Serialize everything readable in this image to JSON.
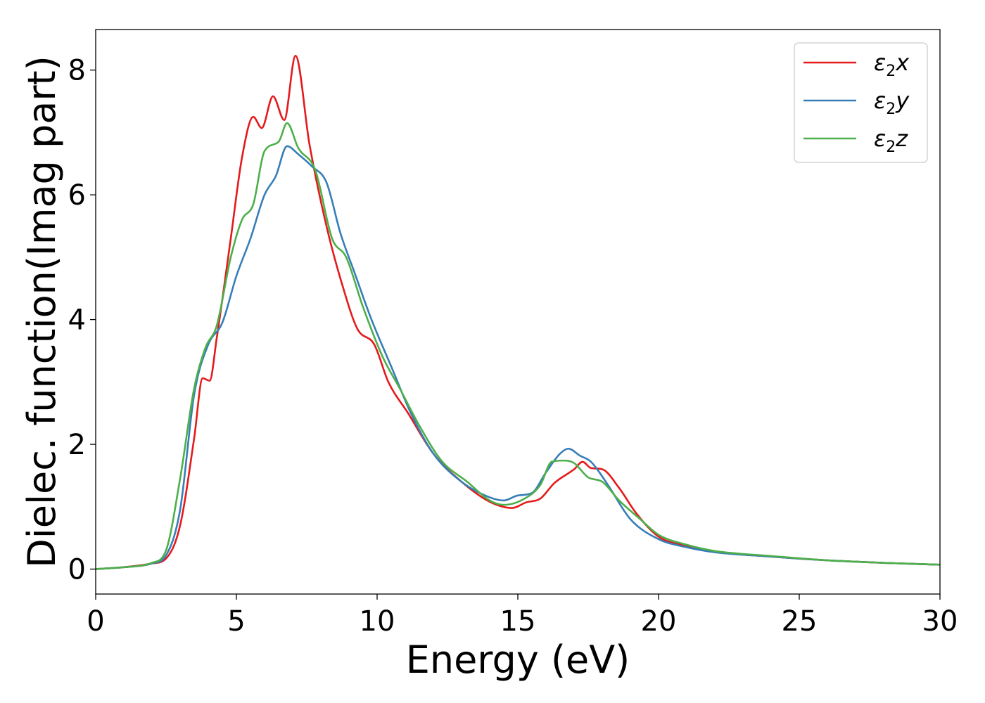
{
  "chart_data": {
    "type": "line",
    "xlabel": "Energy (eV)",
    "ylabel": "Dielec. function(Imag part)",
    "xlim": [
      0,
      30
    ],
    "ylim": [
      -0.4,
      8.65
    ],
    "xticks": [
      0,
      5,
      10,
      15,
      20,
      25,
      30
    ],
    "yticks": [
      0,
      2,
      4,
      6,
      8
    ],
    "grid": false,
    "legend_position": "top-right",
    "series": [
      {
        "name": "ε₂x",
        "legend_main": "ε",
        "legend_sub": "2",
        "legend_tail": "x",
        "color": "#e41a1c",
        "x": [
          0,
          1,
          2,
          2.5,
          3,
          3.5,
          3.8,
          4.05,
          4.3,
          4.8,
          5.2,
          5.6,
          5.9,
          6.3,
          6.7,
          7.1,
          7.6,
          8.2,
          8.8,
          9.3,
          9.9,
          10.4,
          11.1,
          12,
          13,
          14,
          14.8,
          15.3,
          15.8,
          16.3,
          17.0,
          17.3,
          17.6,
          18.0,
          18.6,
          19.2,
          20,
          21,
          22,
          24,
          26,
          28,
          30
        ],
        "y": [
          0,
          0.03,
          0.09,
          0.17,
          0.7,
          2.1,
          3.06,
          3.02,
          3.7,
          5.3,
          6.6,
          7.25,
          7.07,
          7.58,
          7.2,
          8.23,
          6.8,
          5.5,
          4.5,
          3.85,
          3.6,
          3.0,
          2.5,
          1.85,
          1.4,
          1.08,
          0.98,
          1.07,
          1.13,
          1.38,
          1.6,
          1.72,
          1.62,
          1.6,
          1.3,
          0.9,
          0.52,
          0.37,
          0.28,
          0.2,
          0.14,
          0.1,
          0.07
        ]
      },
      {
        "name": "ε₂y",
        "legend_main": "ε",
        "legend_sub": "2",
        "legend_tail": "y",
        "color": "#377eb8",
        "x": [
          0,
          1,
          2,
          2.5,
          3,
          3.5,
          4.0,
          4.5,
          5.0,
          5.5,
          6.0,
          6.4,
          6.8,
          7.2,
          7.7,
          8.2,
          8.7,
          9.2,
          9.8,
          10.5,
          11.2,
          12,
          13,
          14,
          14.5,
          15,
          15.5,
          16,
          16.5,
          16.8,
          17.2,
          17.6,
          18.2,
          19,
          20,
          21,
          22,
          24,
          26,
          28,
          30
        ],
        "y": [
          0,
          0.03,
          0.09,
          0.22,
          0.95,
          2.8,
          3.6,
          3.95,
          4.7,
          5.3,
          6.0,
          6.3,
          6.78,
          6.65,
          6.45,
          6.2,
          5.38,
          4.75,
          4.0,
          3.25,
          2.5,
          1.85,
          1.4,
          1.15,
          1.1,
          1.18,
          1.22,
          1.55,
          1.85,
          1.93,
          1.82,
          1.72,
          1.35,
          0.8,
          0.48,
          0.35,
          0.27,
          0.2,
          0.14,
          0.1,
          0.07
        ]
      },
      {
        "name": "ε₂z",
        "legend_main": "ε",
        "legend_sub": "2",
        "legend_tail": "z",
        "color": "#4daf4a",
        "x": [
          0,
          1,
          2,
          2.5,
          3,
          3.5,
          3.9,
          4.3,
          4.8,
          5.2,
          5.6,
          6.0,
          6.5,
          6.8,
          7.2,
          7.8,
          8.4,
          8.9,
          9.5,
          10.2,
          10.8,
          11.5,
          12.3,
          13.2,
          14,
          14.5,
          15.2,
          15.8,
          16.2,
          16.6,
          17.0,
          17.5,
          18.0,
          18.6,
          19.3,
          20,
          21,
          22,
          24,
          26,
          28,
          30
        ],
        "y": [
          0,
          0.03,
          0.1,
          0.3,
          1.45,
          2.9,
          3.55,
          3.9,
          5.0,
          5.6,
          5.85,
          6.7,
          6.85,
          7.15,
          6.75,
          6.4,
          5.3,
          5.0,
          4.2,
          3.4,
          2.9,
          2.3,
          1.73,
          1.4,
          1.1,
          1.03,
          1.12,
          1.35,
          1.72,
          1.74,
          1.7,
          1.47,
          1.4,
          1.1,
          0.82,
          0.55,
          0.39,
          0.29,
          0.21,
          0.14,
          0.1,
          0.07
        ]
      }
    ]
  }
}
